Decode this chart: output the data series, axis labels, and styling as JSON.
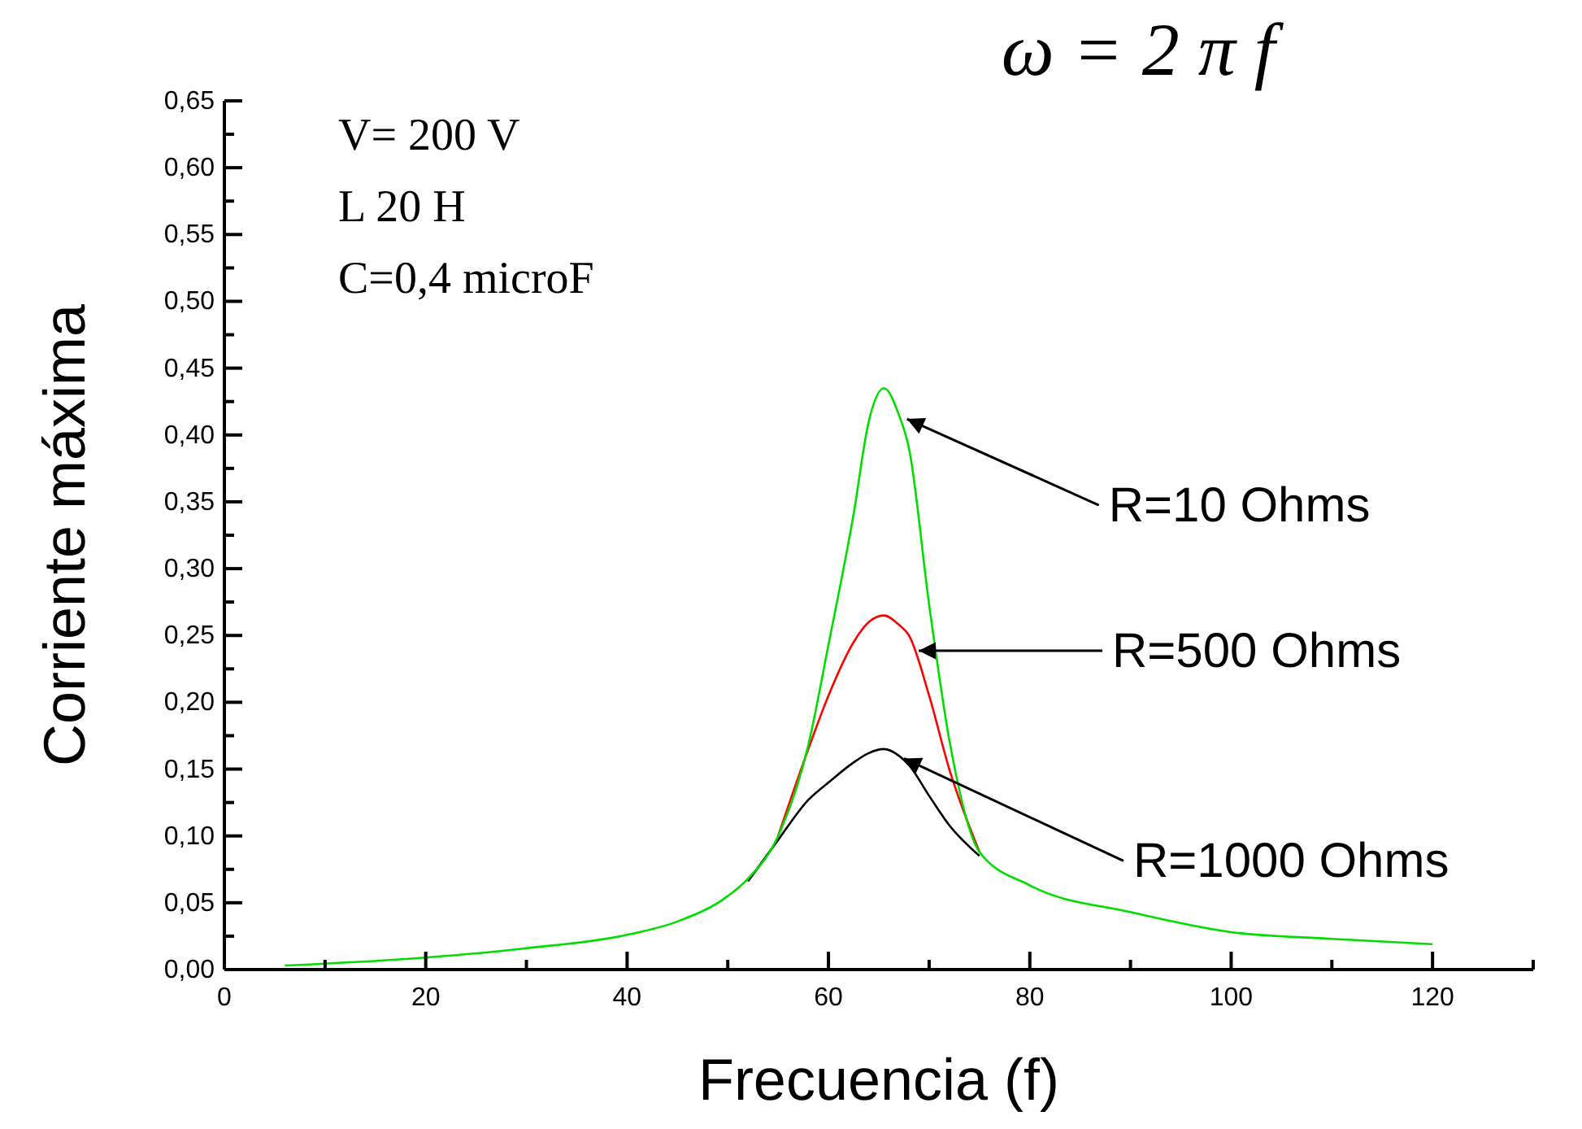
{
  "chart_data": {
    "type": "line",
    "title": "ω = 2 π f",
    "xlabel": "Frecuencia (f)",
    "ylabel": "Corriente máxima",
    "xlim": [
      0,
      130
    ],
    "ylim": [
      0,
      0.65
    ],
    "xticks": [
      0,
      {
        "value": 10,
        "label": null
      },
      20,
      {
        "value": 30,
        "label": null
      },
      40,
      {
        "value": 50,
        "label": null
      },
      60,
      {
        "value": 70,
        "label": null
      },
      80,
      {
        "value": 90,
        "label": null
      },
      100,
      {
        "value": 110,
        "label": null
      },
      120,
      {
        "value": 130,
        "label": null
      }
    ],
    "yticks": [
      {
        "value": 0,
        "label": "0,00"
      },
      {
        "value": 0.025,
        "label": null
      },
      {
        "value": 0.05,
        "label": "0,05"
      },
      {
        "value": 0.075,
        "label": null
      },
      {
        "value": 0.1,
        "label": "0,10"
      },
      {
        "value": 0.125,
        "label": null
      },
      {
        "value": 0.15,
        "label": "0,15"
      },
      {
        "value": 0.175,
        "label": null
      },
      {
        "value": 0.2,
        "label": "0,20"
      },
      {
        "value": 0.225,
        "label": null
      },
      {
        "value": 0.25,
        "label": "0,25"
      },
      {
        "value": 0.275,
        "label": null
      },
      {
        "value": 0.3,
        "label": "0,30"
      },
      {
        "value": 0.325,
        "label": null
      },
      {
        "value": 0.35,
        "label": "0,35"
      },
      {
        "value": 0.375,
        "label": null
      },
      {
        "value": 0.4,
        "label": "0,40"
      },
      {
        "value": 0.425,
        "label": null
      },
      {
        "value": 0.45,
        "label": "0,45"
      },
      {
        "value": 0.475,
        "label": null
      },
      {
        "value": 0.5,
        "label": "0,50"
      },
      {
        "value": 0.525,
        "label": null
      },
      {
        "value": 0.55,
        "label": "0,55"
      },
      {
        "value": 0.575,
        "label": null
      },
      {
        "value": 0.6,
        "label": "0,60"
      },
      {
        "value": 0.625,
        "label": null
      },
      {
        "value": 0.65,
        "label": "0,65"
      }
    ],
    "x": [
      6,
      20,
      30,
      40,
      45,
      50,
      52,
      55,
      58,
      60,
      62.5,
      64,
      65.5,
      67,
      68,
      70,
      72,
      75,
      80,
      90,
      100,
      110,
      120
    ],
    "series": [
      {
        "color": "#00dd00",
        "values": [
          0.003,
          0.009,
          0.016,
          0.026,
          0.036,
          0.055,
          0.068,
          0.1,
          0.168,
          0.243,
          0.341,
          0.41,
          0.435,
          0.415,
          0.39,
          0.273,
          0.172,
          0.088,
          0.063,
          0.043,
          0.028,
          0.023,
          0.019
        ]
      },
      {
        "color": "#ff0000",
        "values": [
          null,
          null,
          null,
          null,
          null,
          null,
          null,
          0.1,
          0.165,
          0.205,
          0.245,
          0.26,
          0.265,
          0.258,
          0.25,
          0.205,
          0.15,
          0.088,
          null,
          null,
          null,
          null,
          null
        ]
      },
      {
        "color": "#000000",
        "values": [
          null,
          null,
          null,
          null,
          null,
          null,
          0.066,
          0.097,
          0.127,
          0.14,
          0.155,
          0.162,
          0.165,
          0.16,
          0.153,
          0.13,
          0.108,
          0.085,
          null,
          null,
          null,
          null,
          null
        ]
      }
    ],
    "annotations": [
      "V= 200 V",
      "L 20 H",
      "C=0,4 microF",
      {
        "text": "R=10 Ohms",
        "x": 67.8,
        "y": 0.412
      },
      "R=500 Ohms",
      {
        "text": "R=1000 Ohms",
        "x": 67.5,
        "y": 0.158
      }
    ],
    "grid": false,
    "marker": "none",
    "line_style": "solid"
  }
}
